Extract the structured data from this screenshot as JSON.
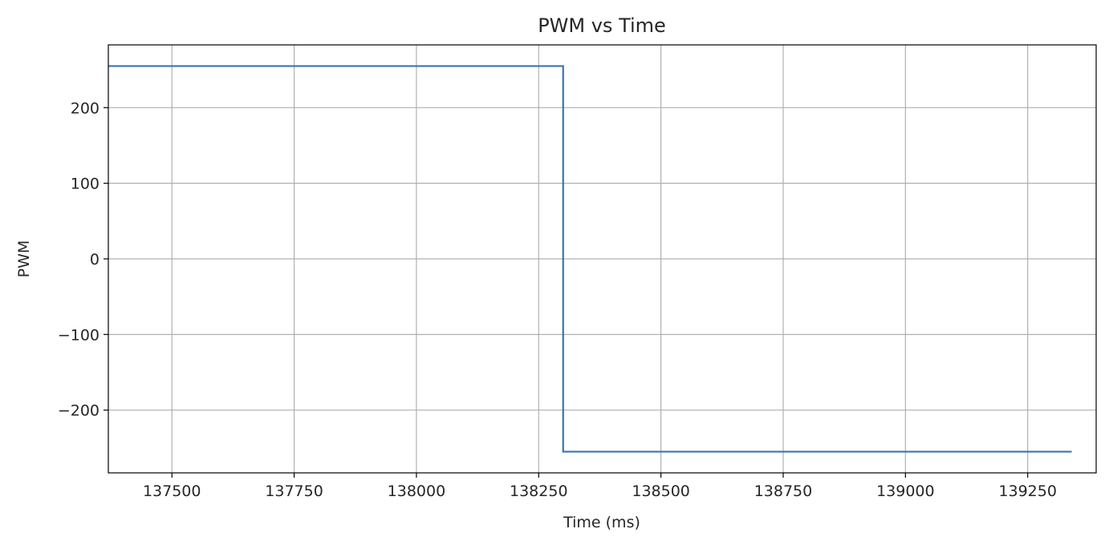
{
  "chart_data": {
    "type": "line",
    "title": "PWM vs Time",
    "xlabel": "Time (ms)",
    "ylabel": "PWM",
    "xlim": [
      137370,
      139390
    ],
    "ylim": [
      -283,
      283
    ],
    "xticks": [
      137500,
      137750,
      138000,
      138250,
      138500,
      138750,
      139000,
      139250
    ],
    "xtick_labels": [
      "137500",
      "137750",
      "138000",
      "138250",
      "138500",
      "138750",
      "139000",
      "139250"
    ],
    "yticks": [
      200,
      100,
      0,
      -100,
      -200
    ],
    "ytick_labels": [
      "200",
      "100",
      "0",
      "−100",
      "−200"
    ],
    "grid": true,
    "series": [
      {
        "color": "#3a75b0",
        "x": [
          137370,
          138300,
          138300,
          139340
        ],
        "y": [
          255,
          255,
          -255,
          -255
        ]
      }
    ]
  }
}
